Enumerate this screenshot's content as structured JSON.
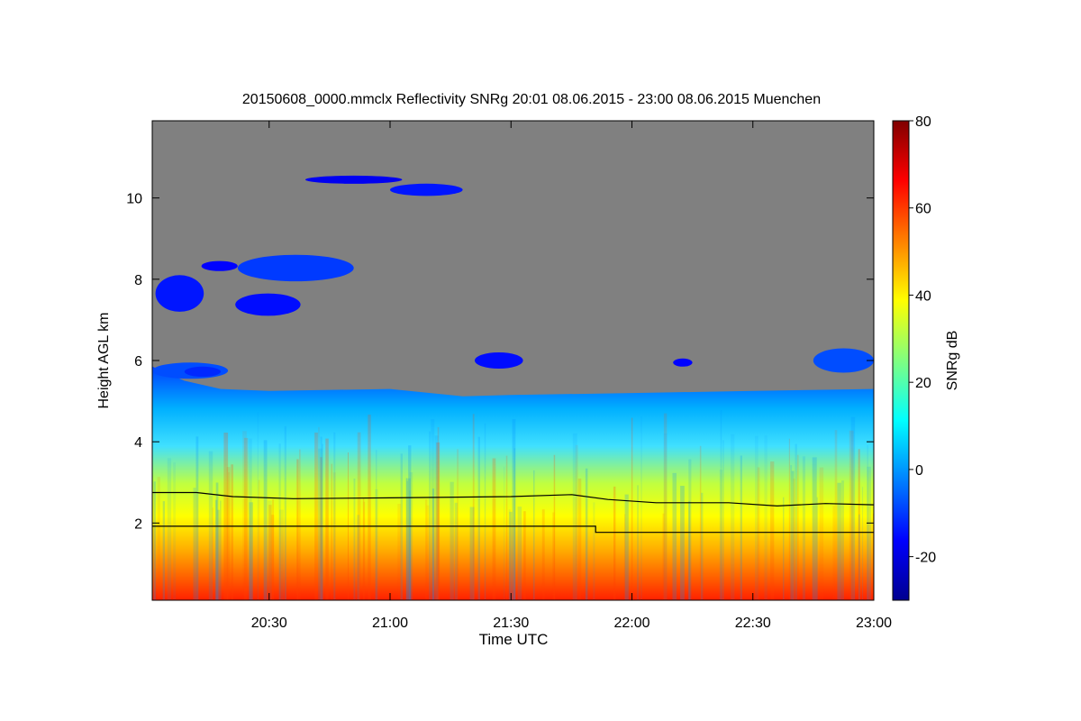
{
  "chart_data": {
    "type": "heatmap",
    "title": "20150608_0000.mmclx Reflectivity SNRg   20:01 08.06.2015 - 23:00 08.06.2015 Muenchen",
    "xlabel": "Time UTC",
    "ylabel": "Height AGL km",
    "x_range_hours": [
      20.0167,
      23.0
    ],
    "y_range_km": [
      0.1,
      11.9
    ],
    "x_ticks": [
      {
        "value": 20.5,
        "label": "20:30"
      },
      {
        "value": 21.0,
        "label": "21:00"
      },
      {
        "value": 21.5,
        "label": "21:30"
      },
      {
        "value": 22.0,
        "label": "22:00"
      },
      {
        "value": 22.5,
        "label": "22:30"
      },
      {
        "value": 23.0,
        "label": "23:00"
      }
    ],
    "y_ticks": [
      {
        "value": 2,
        "label": "2"
      },
      {
        "value": 4,
        "label": "4"
      },
      {
        "value": 6,
        "label": "6"
      },
      {
        "value": 8,
        "label": "8"
      },
      {
        "value": 10,
        "label": "10"
      }
    ],
    "colorbar": {
      "label": "SNRg dB",
      "range": [
        -30,
        80
      ],
      "ticks": [
        {
          "value": -20,
          "label": "-20"
        },
        {
          "value": 0,
          "label": "0"
        },
        {
          "value": 20,
          "label": "20"
        },
        {
          "value": 40,
          "label": "40"
        },
        {
          "value": 60,
          "label": "60"
        },
        {
          "value": 80,
          "label": "80"
        }
      ]
    },
    "background_no_signal_color": "#808080",
    "colormap": [
      "#00008f",
      "#0000ff",
      "#0080ff",
      "#00ffff",
      "#80ff80",
      "#ffff00",
      "#ff8000",
      "#ff0000",
      "#800000"
    ],
    "echo_top_km": [
      {
        "t": 20.017,
        "h": 5.85
      },
      {
        "t": 20.15,
        "h": 5.5
      },
      {
        "t": 20.3,
        "h": 5.3
      },
      {
        "t": 20.5,
        "h": 5.25
      },
      {
        "t": 21.0,
        "h": 5.3
      },
      {
        "t": 21.3,
        "h": 5.12
      },
      {
        "t": 21.5,
        "h": 5.15
      },
      {
        "t": 22.0,
        "h": 5.2
      },
      {
        "t": 22.5,
        "h": 5.25
      },
      {
        "t": 23.0,
        "h": 5.3
      }
    ],
    "lines": [
      {
        "name": "upper_line",
        "points": [
          {
            "t": 20.017,
            "h": 2.75
          },
          {
            "t": 20.2,
            "h": 2.75
          },
          {
            "t": 20.35,
            "h": 2.65
          },
          {
            "t": 20.6,
            "h": 2.6
          },
          {
            "t": 21.0,
            "h": 2.62
          },
          {
            "t": 21.5,
            "h": 2.65
          },
          {
            "t": 21.75,
            "h": 2.7
          },
          {
            "t": 21.9,
            "h": 2.58
          },
          {
            "t": 22.1,
            "h": 2.5
          },
          {
            "t": 22.4,
            "h": 2.5
          },
          {
            "t": 22.6,
            "h": 2.42
          },
          {
            "t": 22.8,
            "h": 2.48
          },
          {
            "t": 23.0,
            "h": 2.45
          }
        ]
      },
      {
        "name": "lower_line",
        "points": [
          {
            "t": 20.017,
            "h": 1.92
          },
          {
            "t": 21.85,
            "h": 1.92
          },
          {
            "t": 21.85,
            "h": 1.77
          },
          {
            "t": 23.0,
            "h": 1.77
          }
        ]
      }
    ],
    "cloud_features": [
      {
        "t0": 20.017,
        "t1": 20.33,
        "h0": 5.55,
        "h1": 5.95,
        "snr": -8
      },
      {
        "t0": 20.15,
        "t1": 20.3,
        "h0": 5.6,
        "h1": 5.85,
        "snr": -12
      },
      {
        "t0": 20.03,
        "t1": 20.23,
        "h0": 7.2,
        "h1": 8.1,
        "snr": -14
      },
      {
        "t0": 20.22,
        "t1": 20.37,
        "h0": 8.2,
        "h1": 8.45,
        "snr": -16
      },
      {
        "t0": 20.37,
        "t1": 20.85,
        "h0": 7.95,
        "h1": 8.6,
        "snr": -10
      },
      {
        "t0": 20.36,
        "t1": 20.63,
        "h0": 7.1,
        "h1": 7.65,
        "snr": -15
      },
      {
        "t0": 20.65,
        "t1": 21.05,
        "h0": 10.35,
        "h1": 10.55,
        "snr": -18
      },
      {
        "t0": 21.0,
        "t1": 21.3,
        "h0": 10.05,
        "h1": 10.35,
        "snr": -14
      },
      {
        "t0": 21.35,
        "t1": 21.55,
        "h0": 5.8,
        "h1": 6.2,
        "snr": -15
      },
      {
        "t0": 22.17,
        "t1": 22.25,
        "h0": 5.85,
        "h1": 6.05,
        "snr": -16
      },
      {
        "t0": 22.75,
        "t1": 23.0,
        "h0": 5.7,
        "h1": 6.3,
        "snr": -8
      }
    ]
  }
}
